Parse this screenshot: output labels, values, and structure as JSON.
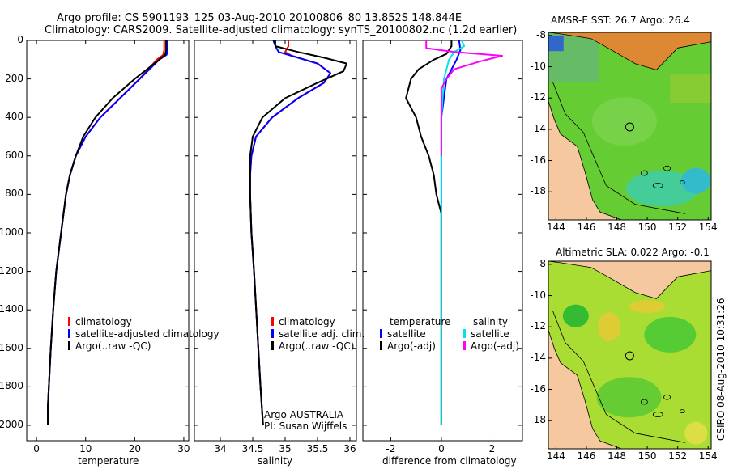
{
  "header": {
    "title_line1": "Argo profile: CS 5901193_125 03-Aug-2010 20100806_80 13.852S 148.844E",
    "title_line2": "Climatology: CARS2009. Satellite-adjusted climatology: synTS_20100802.nc (1.2d earlier)"
  },
  "map_titles": {
    "sst": "AMSR-E SST: 26.7 Argo: 26.4",
    "sla": "Altimetric SLA: 0.022 Argo: -0.1"
  },
  "side_label": "CSIRO 08-Aug-2010 10:31:26",
  "credit": {
    "line1": "Argo AUSTRALIA",
    "line2": "PI: Susan Wijffels"
  },
  "colors": {
    "climatology": "#ff0000",
    "satellite": "#0000ff",
    "argo": "#000000",
    "cyan": "#00e6e6",
    "magenta": "#ff00ff"
  },
  "legends": {
    "temperature": [
      "climatology",
      "satellite-adjusted climatology",
      "Argo(..raw -QC)"
    ],
    "salinity": [
      "climatology",
      "satellite adj. clim.",
      "Argo(..raw -QC)"
    ],
    "diff_left_header": "temperature",
    "diff_left": [
      "satellite",
      "Argo(-adj)"
    ],
    "diff_right_header": "salinity",
    "diff_right": [
      "satellite",
      "Argo(-adj)"
    ]
  },
  "chart_data": [
    {
      "type": "line",
      "xlabel": "temperature",
      "ylabel": "",
      "xlim": [
        -2,
        31
      ],
      "ylim": [
        2080,
        0
      ],
      "y_inverted": true,
      "xticks": [
        0,
        10,
        20,
        30
      ],
      "yticks": [
        0,
        200,
        400,
        600,
        800,
        1000,
        1200,
        1400,
        1600,
        1800,
        2000
      ],
      "series": [
        {
          "name": "climatology",
          "x": [
            26.0,
            26.0,
            25.8,
            24.5,
            21.0,
            17.0,
            13.0,
            10.0,
            8.0,
            6.8,
            6.0,
            5.0,
            4.0,
            3.4,
            2.9,
            2.5,
            2.3,
            2.3
          ],
          "y": [
            0,
            50,
            75,
            100,
            200,
            300,
            400,
            500,
            600,
            700,
            800,
            1000,
            1200,
            1400,
            1600,
            1800,
            1900,
            2000
          ]
        },
        {
          "name": "satellite-adjusted climatology",
          "x": [
            26.7,
            26.7,
            26.5,
            25.0,
            21.0,
            17.0,
            13.0,
            10.0,
            8.0,
            6.8,
            6.0,
            5.0,
            4.0,
            3.4,
            2.9,
            2.5,
            2.3,
            2.3
          ],
          "y": [
            0,
            50,
            75,
            100,
            200,
            300,
            400,
            500,
            600,
            700,
            800,
            1000,
            1200,
            1400,
            1600,
            1800,
            1900,
            2000
          ]
        },
        {
          "name": "Argo(..raw -QC)",
          "x": [
            26.4,
            26.4,
            26.2,
            25.0,
            20.0,
            15.5,
            12.0,
            9.5,
            8.0,
            6.8,
            6.0,
            5.0,
            4.0,
            3.4,
            2.9,
            2.5,
            2.3,
            2.3
          ],
          "y": [
            0,
            50,
            75,
            100,
            200,
            300,
            400,
            500,
            600,
            700,
            800,
            1000,
            1200,
            1400,
            1600,
            1800,
            1900,
            2000
          ]
        }
      ]
    },
    {
      "type": "line",
      "xlabel": "salinity",
      "ylabel": "",
      "xlim": [
        33.6,
        36.1
      ],
      "ylim": [
        2080,
        0
      ],
      "y_inverted": true,
      "xticks": [
        34,
        34.5,
        35,
        35.5,
        36
      ],
      "series": [
        {
          "name": "climatology",
          "x": [
            35.05,
            35.05,
            35.0,
            35.1,
            35.5,
            35.7,
            35.6,
            35.2,
            34.8,
            34.55,
            34.48,
            34.46,
            34.46,
            34.48,
            34.52,
            34.57,
            34.62,
            34.66
          ],
          "y": [
            0,
            30,
            60,
            80,
            120,
            170,
            220,
            300,
            400,
            500,
            600,
            700,
            800,
            1000,
            1200,
            1500,
            1800,
            2000
          ]
        },
        {
          "name": "satellite adj. clim.",
          "x": [
            34.85,
            34.85,
            34.9,
            35.1,
            35.5,
            35.7,
            35.6,
            35.2,
            34.8,
            34.55,
            34.48,
            34.46,
            34.46,
            34.48,
            34.52,
            34.57,
            34.62,
            34.66
          ],
          "y": [
            0,
            30,
            60,
            80,
            120,
            170,
            220,
            300,
            400,
            500,
            600,
            700,
            800,
            1000,
            1200,
            1500,
            1800,
            2000
          ]
        },
        {
          "name": "Argo(..raw -QC)",
          "x": [
            34.82,
            34.85,
            35.2,
            35.6,
            35.95,
            35.9,
            35.5,
            35.0,
            34.65,
            34.5,
            34.46,
            34.46,
            34.46,
            34.48,
            34.52,
            34.57,
            34.62,
            34.66
          ],
          "y": [
            0,
            30,
            60,
            90,
            120,
            160,
            220,
            300,
            400,
            500,
            600,
            700,
            800,
            1000,
            1200,
            1500,
            1800,
            2000
          ]
        }
      ]
    },
    {
      "type": "line",
      "xlabel": "difference from climatology",
      "ylabel": "",
      "xlim": [
        -3.1,
        3.2
      ],
      "ylim": [
        2080,
        0
      ],
      "y_inverted": true,
      "xticks": [
        -2,
        0,
        2
      ],
      "series": [
        {
          "name": "temperature satellite",
          "x": [
            0.7,
            0.75,
            0.6,
            0.2,
            0.0,
            0.0,
            0.0,
            0.0,
            0.0
          ],
          "y": [
            0,
            50,
            100,
            200,
            400,
            700,
            1000,
            1500,
            2000
          ]
        },
        {
          "name": "temperature Argo(-adj)",
          "x": [
            0.4,
            0.4,
            0.2,
            -0.3,
            -0.9,
            -1.2,
            -1.4,
            -1.0,
            -0.8,
            -0.5,
            -0.3,
            -0.2,
            0.0,
            0.0,
            0.0,
            0.0
          ],
          "y": [
            0,
            30,
            70,
            100,
            150,
            200,
            300,
            400,
            500,
            600,
            700,
            800,
            900,
            1200,
            1500,
            2000
          ]
        },
        {
          "name": "salinity satellite",
          "x": [
            0.8,
            0.9,
            0.5,
            0.3,
            0.1,
            0.0,
            0.0,
            0.0
          ],
          "y": [
            0,
            30,
            60,
            100,
            200,
            400,
            1000,
            2000
          ]
        },
        {
          "name": "salinity Argo(-adj)",
          "x": [
            -0.6,
            -0.6,
            0.5,
            2.4,
            1.5,
            0.5,
            0.2,
            0.0,
            0.0,
            0.0
          ],
          "y": [
            0,
            40,
            60,
            80,
            110,
            150,
            200,
            250,
            400,
            600
          ]
        }
      ]
    }
  ],
  "maps": {
    "lon_ticks": [
      "144",
      "146",
      "148",
      "150",
      "152",
      "154"
    ],
    "lat_ticks": [
      "-8",
      "-10",
      "-12",
      "-14",
      "-16",
      "-18"
    ]
  }
}
